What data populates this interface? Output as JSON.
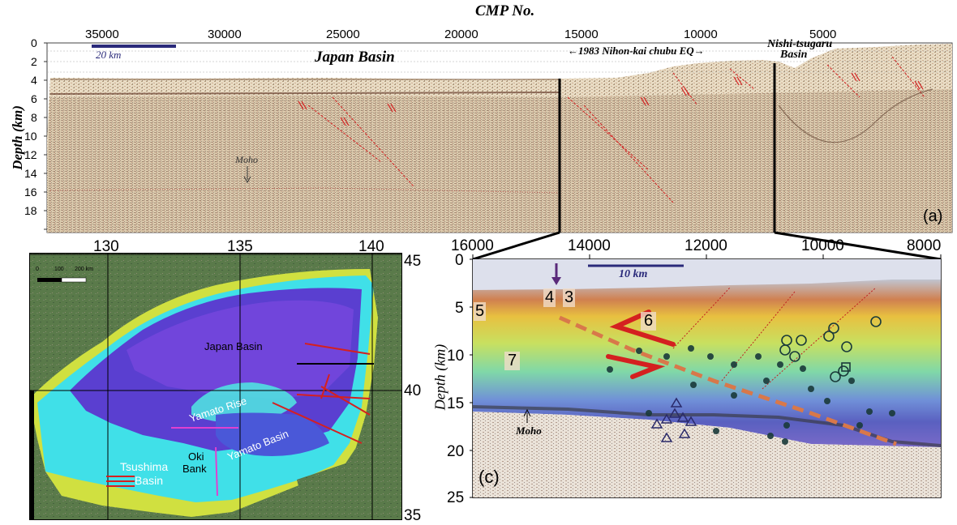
{
  "top_panel": {
    "title": "CMP No.",
    "cmp_ticks": [
      "35000",
      "30000",
      "25000",
      "20000",
      "15000",
      "10000",
      "5000"
    ],
    "ylabel": "Depth (km)",
    "depth_ticks": [
      "0",
      "2",
      "4",
      "6",
      "8",
      "10",
      "12",
      "14",
      "16",
      "18"
    ],
    "scale_label": "20 km",
    "label_basin": "Japan Basin",
    "label_eq": "←1983 Nihon-kai chubu EQ→",
    "label_nishi_1": "Nishi-tsugaru",
    "label_nishi_2": "Basin",
    "label_moho": "Moho",
    "panel_letter": "(a)"
  },
  "map_panel": {
    "lon_ticks": [
      "130",
      "135",
      "140"
    ],
    "lat_ticks": [
      "45",
      "40",
      "35"
    ],
    "scale_ticks": [
      "0",
      "100",
      "200 km"
    ],
    "label_japan_basin": "Japan Basin",
    "label_yamato_rise": "Yamato Rise",
    "label_yamato_basin": "Yamato Basin",
    "label_oki_1": "Oki",
    "label_oki_2": "Bank",
    "label_tsushima_1": "Tsushima",
    "label_tsushima_2": "Basin"
  },
  "detail_panel": {
    "cmp_ticks": [
      "16000",
      "14000",
      "12000",
      "10000",
      "8000"
    ],
    "depth_ticks": [
      "0",
      "5",
      "10",
      "15",
      "20",
      "25"
    ],
    "ylabel": "Depth (km)",
    "scale_label": "10 km",
    "velocity_labels": [
      "4",
      "3",
      "5",
      "6",
      "7"
    ],
    "label_moho": "Moho",
    "panel_letter": "(c)"
  },
  "colors": {
    "scale_bar": "#2a2a7a",
    "fault_red": "#d42020",
    "fault_orange": "#d8784a",
    "map_line_magenta": "#e040d0",
    "deep_basin": "#5a3fd0",
    "shelf_cyan": "#40e0e8",
    "land_green": "#5a7a4a"
  }
}
